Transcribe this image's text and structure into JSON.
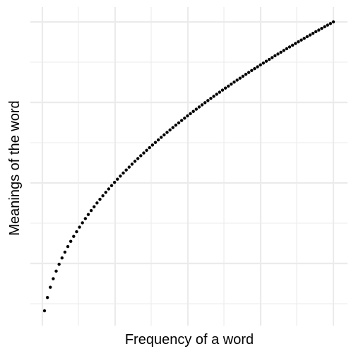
{
  "chart_data": {
    "type": "scatter",
    "title": "",
    "xlabel": "Frequency of a word",
    "ylabel": "Meanings of the word",
    "x_tick_labels": [],
    "y_tick_labels": [],
    "grid": true,
    "legend": "none",
    "point_color": "#000000",
    "grid_color": "#ebebeb",
    "background": "#ffffff",
    "series": [
      {
        "function": "sqrt",
        "x_start": 1,
        "x_end": 100,
        "x_step": 1
      }
    ]
  }
}
